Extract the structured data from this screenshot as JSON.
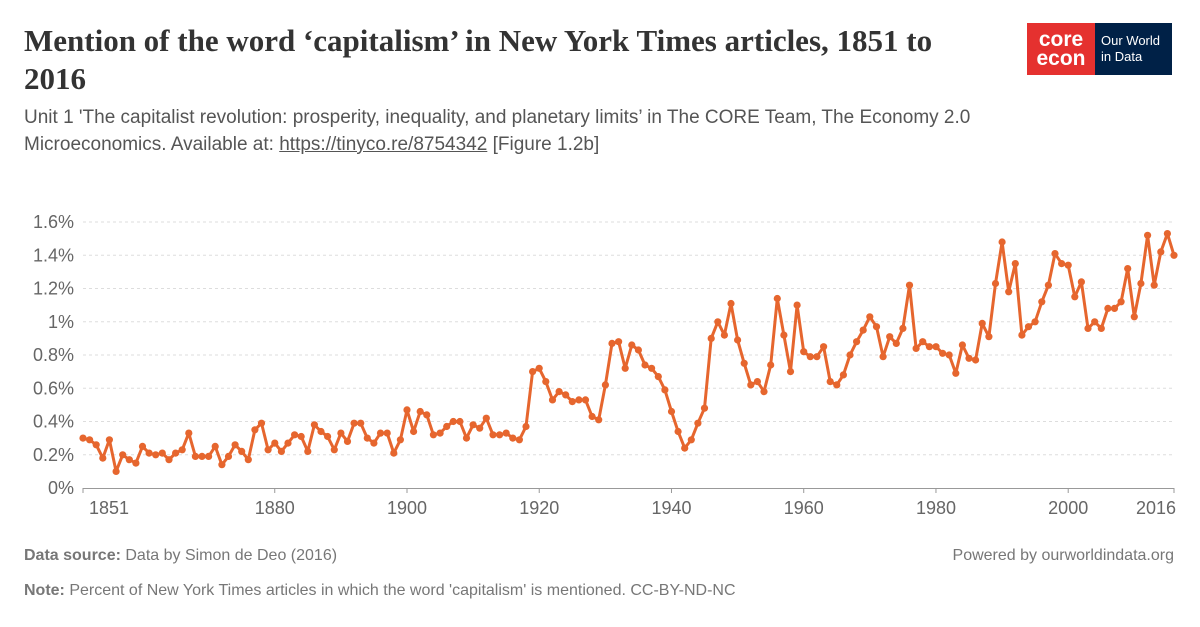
{
  "title": "Mention of the word ‘capitalism’ in New York Times articles, 1851 to 2016",
  "subtitle_line1": "Unit 1 'The capitalist revolution: prosperity, inequality, and planetary limits’ in The CORE Team, The Economy 2.0",
  "subtitle_line2_prefix": "Microeconomics. Available at: ",
  "subtitle_link": "https://tinyco.re/8754342",
  "subtitle_line2_suffix": " [Figure 1.2b]",
  "logo": {
    "core_top": "core",
    "core_bottom": "econ",
    "owid_top": "Our World",
    "owid_bottom": "in Data"
  },
  "footer": {
    "source_label": "Data source:",
    "source_text": " Data by Simon de Deo (2016)",
    "note_label": "Note:",
    "note_text": " Percent of New York Times articles in which the word 'capitalism' is mentioned. CC-BY-ND-NC",
    "powered": "Powered by ourworldindata.org"
  },
  "colors": {
    "line": "#e6662e",
    "grid": "#dddddd",
    "text": "#666666"
  },
  "chart_data": {
    "type": "line",
    "x_ticks": [
      1851,
      1880,
      1900,
      1920,
      1940,
      1960,
      1980,
      2000,
      2016
    ],
    "y_ticks": [
      0,
      0.2,
      0.4,
      0.6,
      0.8,
      1.0,
      1.2,
      1.4,
      1.6
    ],
    "y_tick_labels": [
      "0%",
      "0.2%",
      "0.4%",
      "0.6%",
      "0.8%",
      "1%",
      "1.2%",
      "1.4%",
      "1.6%"
    ],
    "xlim": [
      1851,
      2016
    ],
    "ylim": [
      0,
      1.6
    ],
    "grid": "horizontal dashed",
    "series": [
      {
        "x": [
          1851,
          1852,
          1853,
          1854,
          1855,
          1856,
          1857,
          1858,
          1859,
          1860,
          1861,
          1862,
          1863,
          1864,
          1865,
          1866,
          1867,
          1868,
          1869,
          1870,
          1871,
          1872,
          1873,
          1874,
          1875,
          1876,
          1877,
          1878,
          1879,
          1880,
          1881,
          1882,
          1883,
          1884,
          1885,
          1886,
          1887,
          1888,
          1889,
          1890,
          1891,
          1892,
          1893,
          1894,
          1895,
          1896,
          1897,
          1898,
          1899,
          1900,
          1901,
          1902,
          1903,
          1904,
          1905,
          1906,
          1907,
          1908,
          1909,
          1910,
          1911,
          1912,
          1913,
          1914,
          1915,
          1916,
          1917,
          1918,
          1919,
          1920,
          1921,
          1922,
          1923,
          1924,
          1925,
          1926,
          1927,
          1928,
          1929,
          1930,
          1931,
          1932,
          1933,
          1934,
          1935,
          1936,
          1937,
          1938,
          1939,
          1940,
          1941,
          1942,
          1943,
          1944,
          1945,
          1946,
          1947,
          1948,
          1949,
          1950,
          1951,
          1952,
          1953,
          1954,
          1955,
          1956,
          1957,
          1958,
          1959,
          1960,
          1961,
          1962,
          1963,
          1964,
          1965,
          1966,
          1967,
          1968,
          1969,
          1970,
          1971,
          1972,
          1973,
          1974,
          1975,
          1976,
          1977,
          1978,
          1979,
          1980,
          1981,
          1982,
          1983,
          1984,
          1985,
          1986,
          1987,
          1988,
          1989,
          1990,
          1991,
          1992,
          1993,
          1994,
          1995,
          1996,
          1997,
          1998,
          1999,
          2000,
          2001,
          2002,
          2003,
          2004,
          2005,
          2006,
          2007,
          2008,
          2009,
          2010,
          2011,
          2012,
          2013,
          2014,
          2015,
          2016
        ],
        "values": [
          0.3,
          0.29,
          0.26,
          0.18,
          0.29,
          0.1,
          0.2,
          0.17,
          0.15,
          0.25,
          0.21,
          0.2,
          0.21,
          0.17,
          0.21,
          0.23,
          0.33,
          0.19,
          0.19,
          0.19,
          0.25,
          0.14,
          0.19,
          0.26,
          0.22,
          0.17,
          0.35,
          0.39,
          0.23,
          0.27,
          0.22,
          0.27,
          0.32,
          0.31,
          0.22,
          0.38,
          0.34,
          0.31,
          0.23,
          0.33,
          0.28,
          0.39,
          0.39,
          0.3,
          0.27,
          0.33,
          0.33,
          0.21,
          0.29,
          0.47,
          0.34,
          0.46,
          0.44,
          0.32,
          0.33,
          0.37,
          0.4,
          0.4,
          0.3,
          0.38,
          0.36,
          0.42,
          0.32,
          0.32,
          0.33,
          0.3,
          0.29,
          0.37,
          0.7,
          0.72,
          0.64,
          0.53,
          0.58,
          0.56,
          0.52,
          0.53,
          0.53,
          0.43,
          0.41,
          0.62,
          0.87,
          0.88,
          0.72,
          0.86,
          0.83,
          0.74,
          0.72,
          0.67,
          0.59,
          0.46,
          0.34,
          0.24,
          0.29,
          0.39,
          0.48,
          0.9,
          1.0,
          0.92,
          1.11,
          0.89,
          0.75,
          0.62,
          0.64,
          0.58,
          0.74,
          1.14,
          0.92,
          0.7,
          1.1,
          0.82,
          0.79,
          0.79,
          0.85,
          0.64,
          0.62,
          0.68,
          0.8,
          0.88,
          0.95,
          1.03,
          0.97,
          0.79,
          0.91,
          0.87,
          0.96,
          1.22,
          0.84,
          0.88,
          0.85,
          0.85,
          0.81,
          0.8,
          0.69,
          0.86,
          0.78,
          0.77,
          0.99,
          0.91,
          1.23,
          1.48,
          1.18,
          1.35,
          0.92,
          0.97,
          1.0,
          1.12,
          1.22,
          1.41,
          1.35,
          1.34,
          1.15,
          1.24,
          0.96,
          1.0,
          0.96,
          1.08,
          1.08,
          1.12,
          1.32,
          1.03,
          1.23,
          1.52,
          1.22,
          1.42,
          1.53,
          1.4
        ]
      }
    ]
  }
}
